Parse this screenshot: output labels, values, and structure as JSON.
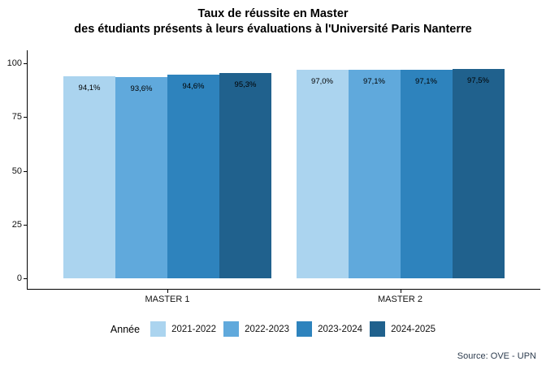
{
  "title": {
    "line1": "Taux de réussite en Master",
    "line2": "des étudiants présents à leurs évaluations à l'Université Paris Nanterre"
  },
  "source_note": "Source: OVE - UPN",
  "legend": {
    "title": "Année",
    "entries": [
      {
        "label": "2021-2022",
        "color": "#ABD4EF"
      },
      {
        "label": "2022-2023",
        "color": "#60A9DC"
      },
      {
        "label": "2023-2024",
        "color": "#2E83BD"
      },
      {
        "label": "2024-2025",
        "color": "#20618D"
      }
    ]
  },
  "chart_data": {
    "type": "bar",
    "title": "Taux de réussite en Master des étudiants présents à leurs évaluations à l'Université Paris Nanterre",
    "categories": [
      "MASTER 1",
      "MASTER 2"
    ],
    "series": [
      {
        "name": "2021-2022",
        "color": "#ABD4EF",
        "values": [
          94.1,
          97.0
        ],
        "data_labels": [
          "94,1%",
          "97,0%"
        ]
      },
      {
        "name": "2022-2023",
        "color": "#60A9DC",
        "values": [
          93.6,
          97.1
        ],
        "data_labels": [
          "93,6%",
          "97,1%"
        ]
      },
      {
        "name": "2023-2024",
        "color": "#2E83BD",
        "values": [
          94.6,
          97.1
        ],
        "data_labels": [
          "94,6%",
          "97,1%"
        ]
      },
      {
        "name": "2024-2025",
        "color": "#20618D",
        "values": [
          95.3,
          97.5
        ],
        "data_labels": [
          "95,3%",
          "97,5%"
        ]
      }
    ],
    "xlabel": "",
    "ylabel": "",
    "y_ticks": [
      0,
      25,
      50,
      75,
      100
    ],
    "ylim": [
      0,
      105
    ],
    "grid": false,
    "legend_position": "bottom",
    "legend_title": "Année"
  }
}
